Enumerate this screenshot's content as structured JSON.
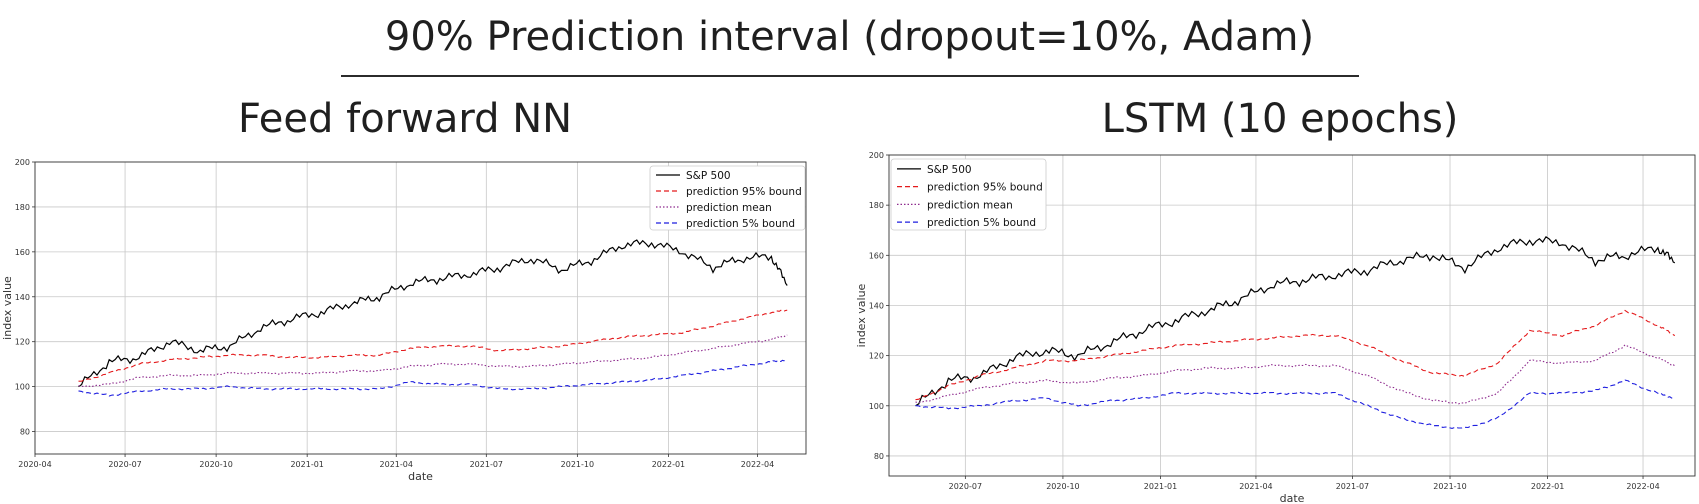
{
  "header": {
    "title": "90% Prediction interval (dropout=10%, Adam)"
  },
  "chart_data": [
    {
      "type": "line",
      "title": "Feed forward NN",
      "xlabel": "date",
      "ylabel": "index value",
      "xlim": [
        "2020-04-01",
        "2022-05-20"
      ],
      "ylim": [
        70,
        200
      ],
      "x_ticks": [
        "2020-04",
        "2020-07",
        "2020-10",
        "2021-01",
        "2021-04",
        "2021-07",
        "2021-10",
        "2022-01",
        "2022-04"
      ],
      "y_ticks": [
        80,
        100,
        120,
        140,
        160,
        180,
        200
      ],
      "grid": true,
      "legend_position": "top-right",
      "x": [
        "2020-05-15",
        "2020-06-15",
        "2020-07-15",
        "2020-08-15",
        "2020-09-15",
        "2020-10-15",
        "2020-11-15",
        "2020-12-15",
        "2021-01-15",
        "2021-02-15",
        "2021-03-15",
        "2021-04-15",
        "2021-05-15",
        "2021-06-15",
        "2021-07-15",
        "2021-08-15",
        "2021-09-15",
        "2021-10-15",
        "2021-11-15",
        "2021-12-15",
        "2022-01-15",
        "2022-02-15",
        "2022-03-15",
        "2022-04-15",
        "2022-05-01"
      ],
      "series": [
        {
          "name": "S&P 500",
          "color": "#000000",
          "dash": "solid",
          "values": [
            100,
            111,
            113,
            120,
            116,
            118,
            126,
            130,
            133,
            137,
            140,
            146,
            148,
            150,
            153,
            157,
            152,
            156,
            163,
            164,
            160,
            153,
            157,
            158,
            145
          ]
        },
        {
          "name": "prediction 95% bound",
          "color": "#e41a1c",
          "dash": "dashed",
          "values": [
            102,
            106,
            110,
            112,
            113,
            114,
            114,
            113,
            113,
            114,
            114,
            117,
            118,
            118,
            116,
            117,
            118,
            120,
            122,
            123,
            124,
            127,
            130,
            133,
            134
          ]
        },
        {
          "name": "prediction mean",
          "color": "#8e2b8e",
          "dash": "dotted",
          "values": [
            100,
            101,
            104,
            105,
            105,
            106,
            106,
            106,
            106,
            107,
            107,
            109,
            110,
            110,
            109,
            109,
            110,
            111,
            112,
            113,
            115,
            117,
            119,
            121,
            123
          ]
        },
        {
          "name": "prediction 5% bound",
          "color": "#1f1fdf",
          "dash": "dashed",
          "values": [
            98,
            96,
            98,
            99,
            99,
            100,
            99,
            99,
            99,
            99,
            99,
            102,
            101,
            101,
            99,
            99,
            100,
            101,
            102,
            103,
            105,
            107,
            109,
            111,
            112
          ]
        }
      ]
    },
    {
      "type": "line",
      "title": "LSTM (10 epochs)",
      "xlabel": "date",
      "ylabel": "index value",
      "xlim": [
        "2020-04-20",
        "2022-05-20"
      ],
      "ylim": [
        72,
        200
      ],
      "x_ticks": [
        "2020-07",
        "2020-10",
        "2021-01",
        "2021-04",
        "2021-07",
        "2021-10",
        "2022-01",
        "2022-04"
      ],
      "y_ticks": [
        80,
        100,
        120,
        140,
        160,
        180,
        200
      ],
      "grid": true,
      "legend_position": "top-left",
      "x": [
        "2020-05-15",
        "2020-06-15",
        "2020-07-15",
        "2020-08-15",
        "2020-09-15",
        "2020-10-15",
        "2020-11-15",
        "2020-12-15",
        "2021-01-15",
        "2021-02-15",
        "2021-03-15",
        "2021-04-15",
        "2021-05-15",
        "2021-06-15",
        "2021-07-15",
        "2021-08-15",
        "2021-09-15",
        "2021-10-15",
        "2021-11-15",
        "2021-12-15",
        "2022-01-15",
        "2022-02-15",
        "2022-03-15",
        "2022-04-15",
        "2022-05-01"
      ],
      "series": [
        {
          "name": "S&P 500",
          "color": "#000000",
          "dash": "solid",
          "values": [
            100,
            110,
            112,
            119,
            122,
            120,
            125,
            130,
            134,
            138,
            142,
            148,
            150,
            152,
            154,
            158,
            160,
            155,
            163,
            166,
            165,
            158,
            160,
            163,
            157
          ]
        },
        {
          "name": "prediction 95% bound",
          "color": "#e41a1c",
          "dash": "dashed",
          "values": [
            102,
            108,
            112,
            115,
            118,
            118,
            120,
            122,
            124,
            125,
            126,
            127,
            128,
            128,
            124,
            118,
            113,
            112,
            117,
            130,
            128,
            132,
            138,
            132,
            128
          ]
        },
        {
          "name": "prediction mean",
          "color": "#8e2b8e",
          "dash": "dotted",
          "values": [
            101,
            104,
            107,
            109,
            110,
            109,
            111,
            112,
            114,
            115,
            115,
            116,
            116,
            116,
            112,
            106,
            102,
            101,
            105,
            118,
            117,
            118,
            124,
            119,
            116
          ]
        },
        {
          "name": "prediction 5% bound",
          "color": "#1f1fdf",
          "dash": "dashed",
          "values": [
            100,
            99,
            100,
            102,
            103,
            100,
            102,
            103,
            105,
            105,
            105,
            105,
            105,
            105,
            100,
            95,
            92,
            91,
            95,
            105,
            105,
            106,
            110,
            105,
            103
          ]
        }
      ]
    }
  ]
}
